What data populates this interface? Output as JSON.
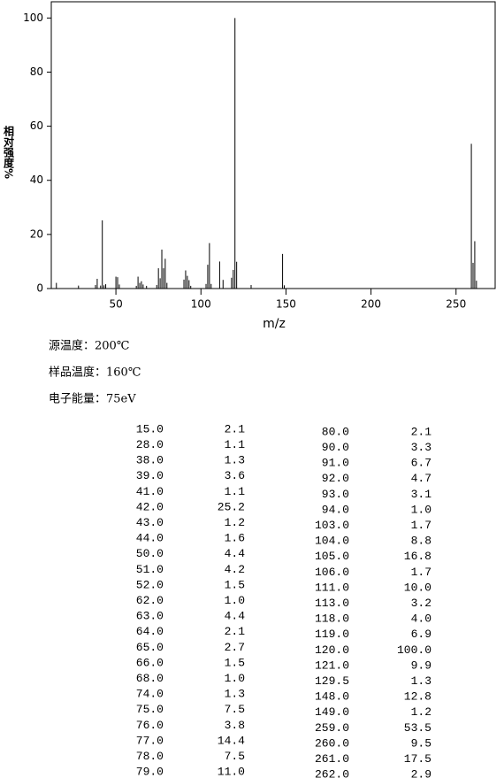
{
  "chart_data": {
    "type": "bar",
    "xlabel": "m/z",
    "ylabel": "相对强度%",
    "x": [
      15,
      28,
      38,
      39,
      41,
      42,
      43,
      44,
      50,
      51,
      52,
      62,
      63,
      64,
      65,
      66,
      68,
      74,
      75,
      76,
      77,
      78,
      79,
      80,
      90,
      91,
      92,
      93,
      94,
      103,
      104,
      105,
      106,
      111,
      113,
      118,
      119,
      120,
      121,
      129.5,
      148,
      149,
      259,
      260,
      261,
      262
    ],
    "values": [
      2.1,
      1.1,
      1.3,
      3.6,
      1.1,
      25.2,
      1.2,
      1.6,
      4.4,
      4.2,
      1.5,
      1.0,
      4.4,
      2.1,
      2.7,
      1.5,
      1.0,
      1.3,
      7.5,
      3.8,
      14.4,
      7.5,
      11.0,
      2.1,
      3.3,
      6.7,
      4.7,
      3.1,
      1.0,
      1.7,
      8.8,
      16.8,
      1.7,
      10.0,
      3.2,
      4.0,
      6.9,
      100.0,
      9.9,
      1.3,
      12.8,
      1.2,
      53.5,
      9.5,
      17.5,
      2.9
    ],
    "color": "#000000",
    "xlim": [
      12,
      273
    ],
    "ylim": [
      0,
      106
    ],
    "xticks": [
      50,
      100,
      150,
      200,
      250
    ],
    "yticks": [
      0,
      20,
      40,
      60,
      80,
      100
    ]
  },
  "info": [
    "源温度：200℃",
    "样品温度：160℃",
    "电子能量：75eV"
  ],
  "table": {
    "rows": [
      [
        "15.0",
        "2.1",
        "80.0",
        "2.1"
      ],
      [
        "28.0",
        "1.1",
        "90.0",
        "3.3"
      ],
      [
        "38.0",
        "1.3",
        "91.0",
        "6.7"
      ],
      [
        "39.0",
        "3.6",
        "92.0",
        "4.7"
      ],
      [
        "41.0",
        "1.1",
        "93.0",
        "3.1"
      ],
      [
        "42.0",
        "25.2",
        "94.0",
        "1.0"
      ],
      [
        "43.0",
        "1.2",
        "103.0",
        "1.7"
      ],
      [
        "44.0",
        "1.6",
        "104.0",
        "8.8"
      ],
      [
        "50.0",
        "4.4",
        "105.0",
        "16.8"
      ],
      [
        "51.0",
        "4.2",
        "106.0",
        "1.7"
      ],
      [
        "52.0",
        "1.5",
        "111.0",
        "10.0"
      ],
      [
        "62.0",
        "1.0",
        "113.0",
        "3.2"
      ],
      [
        "63.0",
        "4.4",
        "118.0",
        "4.0"
      ],
      [
        "64.0",
        "2.1",
        "119.0",
        "6.9"
      ],
      [
        "65.0",
        "2.7",
        "120.0",
        "100.0"
      ],
      [
        "66.0",
        "1.5",
        "121.0",
        "9.9"
      ],
      [
        "68.0",
        "1.0",
        "129.5",
        "1.3"
      ],
      [
        "74.0",
        "1.3",
        "148.0",
        "12.8"
      ],
      [
        "75.0",
        "7.5",
        "149.0",
        "1.2"
      ],
      [
        "76.0",
        "3.8",
        "259.0",
        "53.5"
      ],
      [
        "77.0",
        "14.4",
        "260.0",
        "9.5"
      ],
      [
        "78.0",
        "7.5",
        "261.0",
        "17.5"
      ],
      [
        "79.0",
        "11.0",
        "262.0",
        "2.9"
      ]
    ]
  }
}
